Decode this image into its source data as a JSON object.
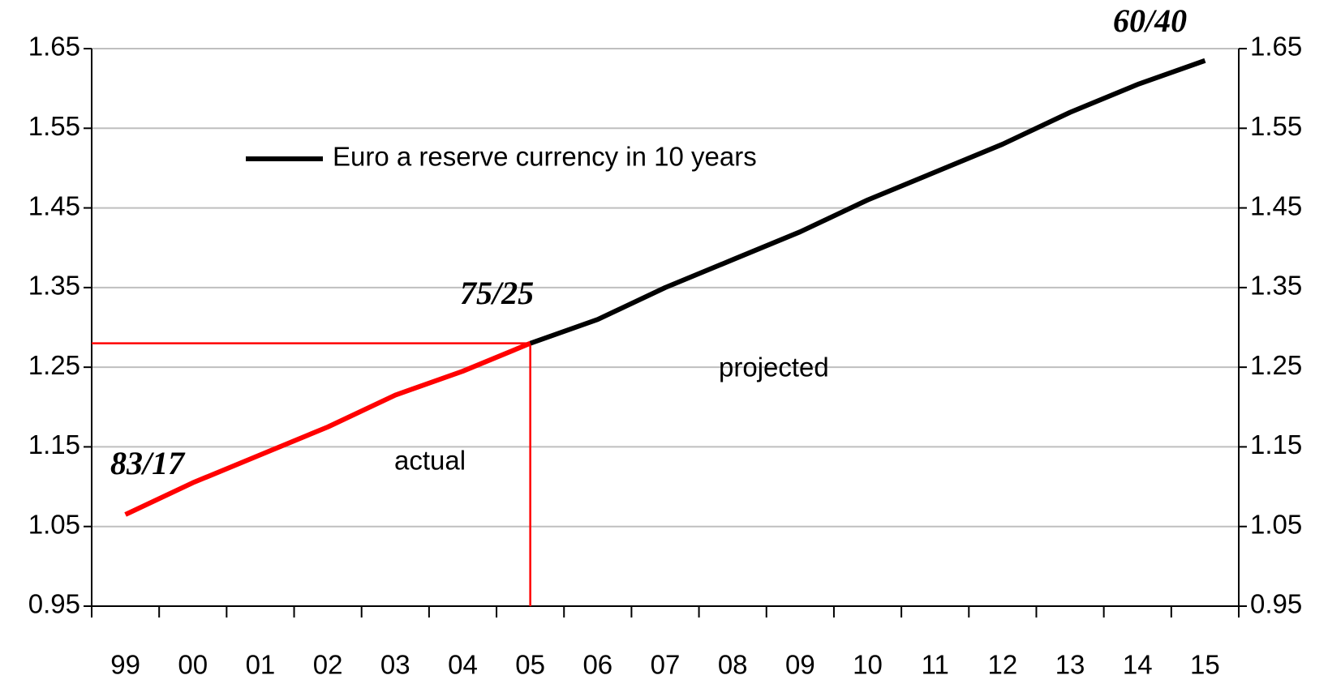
{
  "chart_data": {
    "type": "line",
    "categories": [
      "99",
      "00",
      "01",
      "02",
      "03",
      "04",
      "05",
      "06",
      "07",
      "08",
      "09",
      "10",
      "11",
      "12",
      "13",
      "14",
      "15"
    ],
    "series": [
      {
        "name": "Euro a reserve currency in 10 years",
        "color": "#000000",
        "values": [
          null,
          null,
          null,
          null,
          null,
          null,
          1.28,
          1.31,
          1.35,
          1.385,
          1.42,
          1.46,
          1.495,
          1.53,
          1.57,
          1.605,
          1.635
        ]
      },
      {
        "color": "#ff0000",
        "values": [
          1.065,
          1.105,
          1.14,
          1.175,
          1.215,
          1.245,
          1.28,
          null,
          null,
          null,
          null,
          null,
          null,
          null,
          null,
          null,
          null
        ]
      }
    ],
    "ylim": [
      0.95,
      1.65
    ],
    "yticks": [
      0.95,
      1.05,
      1.15,
      1.25,
      1.35,
      1.45,
      1.55,
      1.65
    ],
    "y2lim": [
      0.95,
      1.65
    ],
    "y2ticks": [
      0.95,
      1.05,
      1.15,
      1.25,
      1.35,
      1.45,
      1.55,
      1.65
    ],
    "grid": true,
    "legend": "upper left",
    "annotations": [
      "83/17",
      "75/25",
      "60/40",
      "actual",
      "projected"
    ]
  }
}
